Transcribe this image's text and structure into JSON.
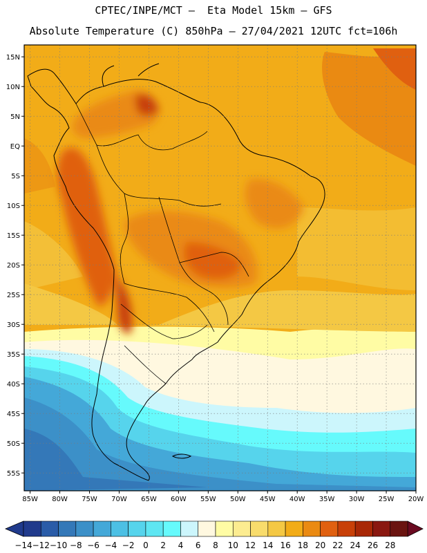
{
  "header": {
    "line1": "CPTEC/INPE/MCT –  Eta Model 15km – GFS",
    "line2": "Absolute Temperature (C) 850hPa – 27/04/2021 12UTC fct=106h"
  },
  "map": {
    "lon_labels": [
      "85W",
      "80W",
      "75W",
      "70W",
      "65W",
      "60W",
      "55W",
      "50W",
      "45W",
      "40W",
      "35W",
      "30W",
      "25W",
      "20W"
    ],
    "lat_labels": [
      "15N",
      "10N",
      "5N",
      "EQ",
      "5S",
      "10S",
      "15S",
      "20S",
      "25S",
      "30S",
      "35S",
      "40S",
      "45S",
      "50S",
      "55S"
    ],
    "lon_range": [
      -86,
      -20
    ],
    "lat_range": [
      17,
      -58
    ]
  },
  "colorbar": {
    "labels": [
      "-14",
      "-12",
      "-10",
      "-8",
      "-6",
      "-4",
      "-2",
      "0",
      "2",
      "4",
      "6",
      "8",
      "10",
      "12",
      "14",
      "16",
      "18",
      "20",
      "22",
      "24",
      "26",
      "28"
    ],
    "colors": [
      "#203a8c",
      "#2a5ca8",
      "#3478b8",
      "#3c90c8",
      "#44a8d8",
      "#4cc0e4",
      "#56d4ec",
      "#5ee6f2",
      "#66fafc",
      "#ccf6fc",
      "#fff8e0",
      "#fffca4",
      "#fcec90",
      "#f8dc6c",
      "#f4c844",
      "#f2ac18",
      "#ea8a12",
      "#e06010",
      "#c84008",
      "#a82806",
      "#8a1810",
      "#6a1410"
    ],
    "low_arrow": "#203a8c",
    "high_arrow": "#6a0a20"
  }
}
